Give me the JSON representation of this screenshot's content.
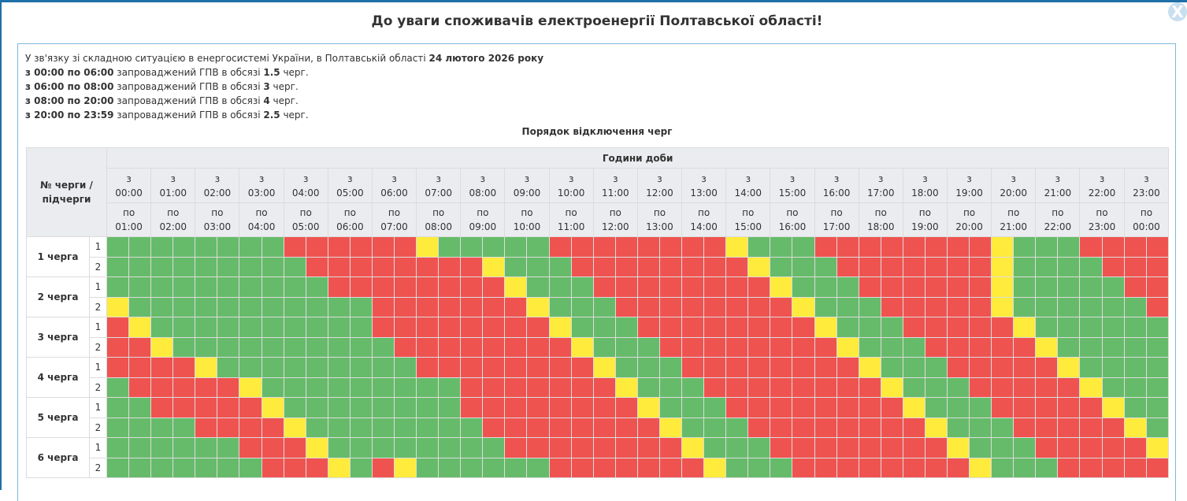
{
  "title": "До уваги споживачів електроенергії Полтавської області!",
  "close_label": "X",
  "notice": {
    "intro": "У зв'язку зі складною ситуацією в енергосистемі України, в Полтавській області",
    "date": "24 лютого 2026 року",
    "periods": [
      {
        "range": "з 00:00 по 06:00",
        "text": "запроваджений ГПВ в обсязі",
        "amount": "1.5",
        "unit": "черг."
      },
      {
        "range": "з 06:00 по 08:00",
        "text": "запроваджений ГПВ в обсязі",
        "amount": "3",
        "unit": "черг."
      },
      {
        "range": "з 08:00 по 20:00",
        "text": "запроваджений ГПВ в обсязі",
        "amount": "4",
        "unit": "черг."
      },
      {
        "range": "з 20:00 по 23:59",
        "text": "запроваджений ГПВ в обсязі",
        "amount": "2.5",
        "unit": "черг."
      }
    ]
  },
  "table": {
    "caption": "Порядок відключення черг",
    "queue_header": "№ черги / підчерги",
    "hours_header": "Години доби",
    "from_word": "з",
    "to_word": "по",
    "from_times": [
      "00:00",
      "01:00",
      "02:00",
      "03:00",
      "04:00",
      "05:00",
      "06:00",
      "07:00",
      "08:00",
      "09:00",
      "10:00",
      "11:00",
      "12:00",
      "13:00",
      "14:00",
      "15:00",
      "16:00",
      "17:00",
      "18:00",
      "19:00",
      "20:00",
      "21:00",
      "22:00",
      "23:00"
    ],
    "to_times": [
      "01:00",
      "02:00",
      "03:00",
      "04:00",
      "05:00",
      "06:00",
      "07:00",
      "08:00",
      "09:00",
      "10:00",
      "11:00",
      "12:00",
      "13:00",
      "14:00",
      "15:00",
      "16:00",
      "17:00",
      "18:00",
      "19:00",
      "20:00",
      "21:00",
      "22:00",
      "23:00",
      "00:00"
    ],
    "colors": {
      "G": "#66bb6a",
      "R": "#ef5350",
      "Y": "#ffeb3b"
    },
    "queues": [
      {
        "label": "1 черга",
        "subs": [
          {
            "label": "1",
            "slots": "GGGGGGGGRRRRRRYGGGGGRRRRRRRRYGGGRRRRRRRRYGGGRRRR"
          },
          {
            "label": "2",
            "slots": "GGGGGGGGGRRRRRRRRYGGGRRRRRRRRYGGGRRRRRRRYGGGGRRR"
          }
        ]
      },
      {
        "label": "2 черга",
        "subs": [
          {
            "label": "1",
            "slots": "GGGGGGGGGGRRRRRRRRYGGGRRRRRRRRYGGGRRRRRRYGGGGGRR"
          },
          {
            "label": "2",
            "slots": "YGGGGGGGGGGGRRRRRRRYGGGRRRRRRRRYGGGRRRRRYGGGGGGR"
          }
        ]
      },
      {
        "label": "3 черга",
        "subs": [
          {
            "label": "1",
            "slots": "RYGGGGGGGGGGRRRRRRRRYGGGRRRRRRRRYGGGRRRRRYGGGGGG"
          },
          {
            "label": "2",
            "slots": "RRYGGGGGGGGGGRRRRRRRRYGGGRRRRRRRRYGGGRRRRRYGGGGG"
          }
        ]
      },
      {
        "label": "4 черга",
        "subs": [
          {
            "label": "1",
            "slots": "RRRRYGGGGGGGGGRRRRRRRRYGGGRRRRRRRRYGGGRRRRRYGGGG"
          },
          {
            "label": "2",
            "slots": "GRRRRRYGGGGGGGGGRRRRRRRYGGGRRRRRRRRYGGGRRRRRYGGG"
          }
        ]
      },
      {
        "label": "5 черга",
        "subs": [
          {
            "label": "1",
            "slots": "GGRRRRRYGGGGGGGGRRRRRRRRYGGGRRRRRRRRYGGGRRRRRYGG"
          },
          {
            "label": "2",
            "slots": "GGGGRRRRYGGGGGGGGRRRRRRRRYGGGRRRRRRRRYGGGRRRRRYG"
          }
        ]
      },
      {
        "label": "6 черга",
        "subs": [
          {
            "label": "1",
            "slots": "GGGGGGRRRYGGGGGGGGRRRRRRRRYGGGRRRRRRRRYGGGRRRRRY"
          },
          {
            "label": "2",
            "slots": "GGGGGGGRRRYGRYGGGGGGRRRRRRRYGGGRRRRRRRRYGGGRRRRR"
          }
        ]
      }
    ]
  }
}
